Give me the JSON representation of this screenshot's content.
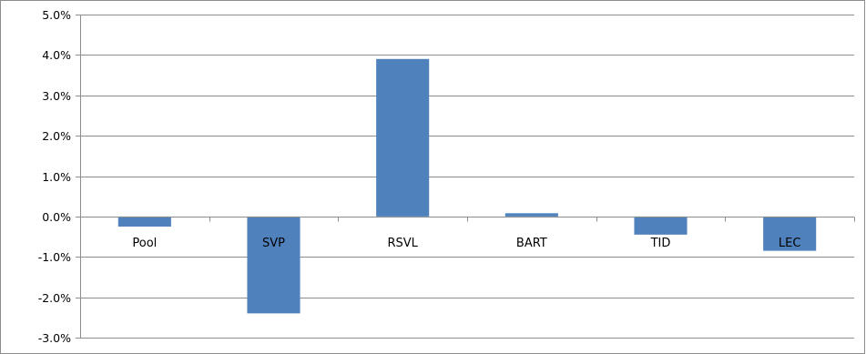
{
  "chart_data": {
    "type": "bar",
    "title": "",
    "xlabel": "",
    "ylabel": "",
    "categories": [
      "Pool",
      "SVP",
      "RSVL",
      "BART",
      "TID",
      "LEC"
    ],
    "values": [
      -0.25,
      -2.4,
      3.9,
      0.08,
      -0.45,
      -0.85
    ],
    "ylim": [
      -3.0,
      5.0
    ],
    "yticks": [
      5.0,
      4.0,
      3.0,
      2.0,
      1.0,
      0.0,
      -1.0,
      -2.0,
      -3.0
    ],
    "ytick_labels": [
      "5.0%",
      "4.0%",
      "3.0%",
      "2.0%",
      "1.0%",
      "0.0%",
      "-1.0%",
      "-2.0%",
      "-3.0%"
    ],
    "grid": true,
    "legend": "none",
    "bar_color": "#4f81bd",
    "grid_color": "#8c8c8c",
    "axis_color": "#8c8c8c"
  }
}
